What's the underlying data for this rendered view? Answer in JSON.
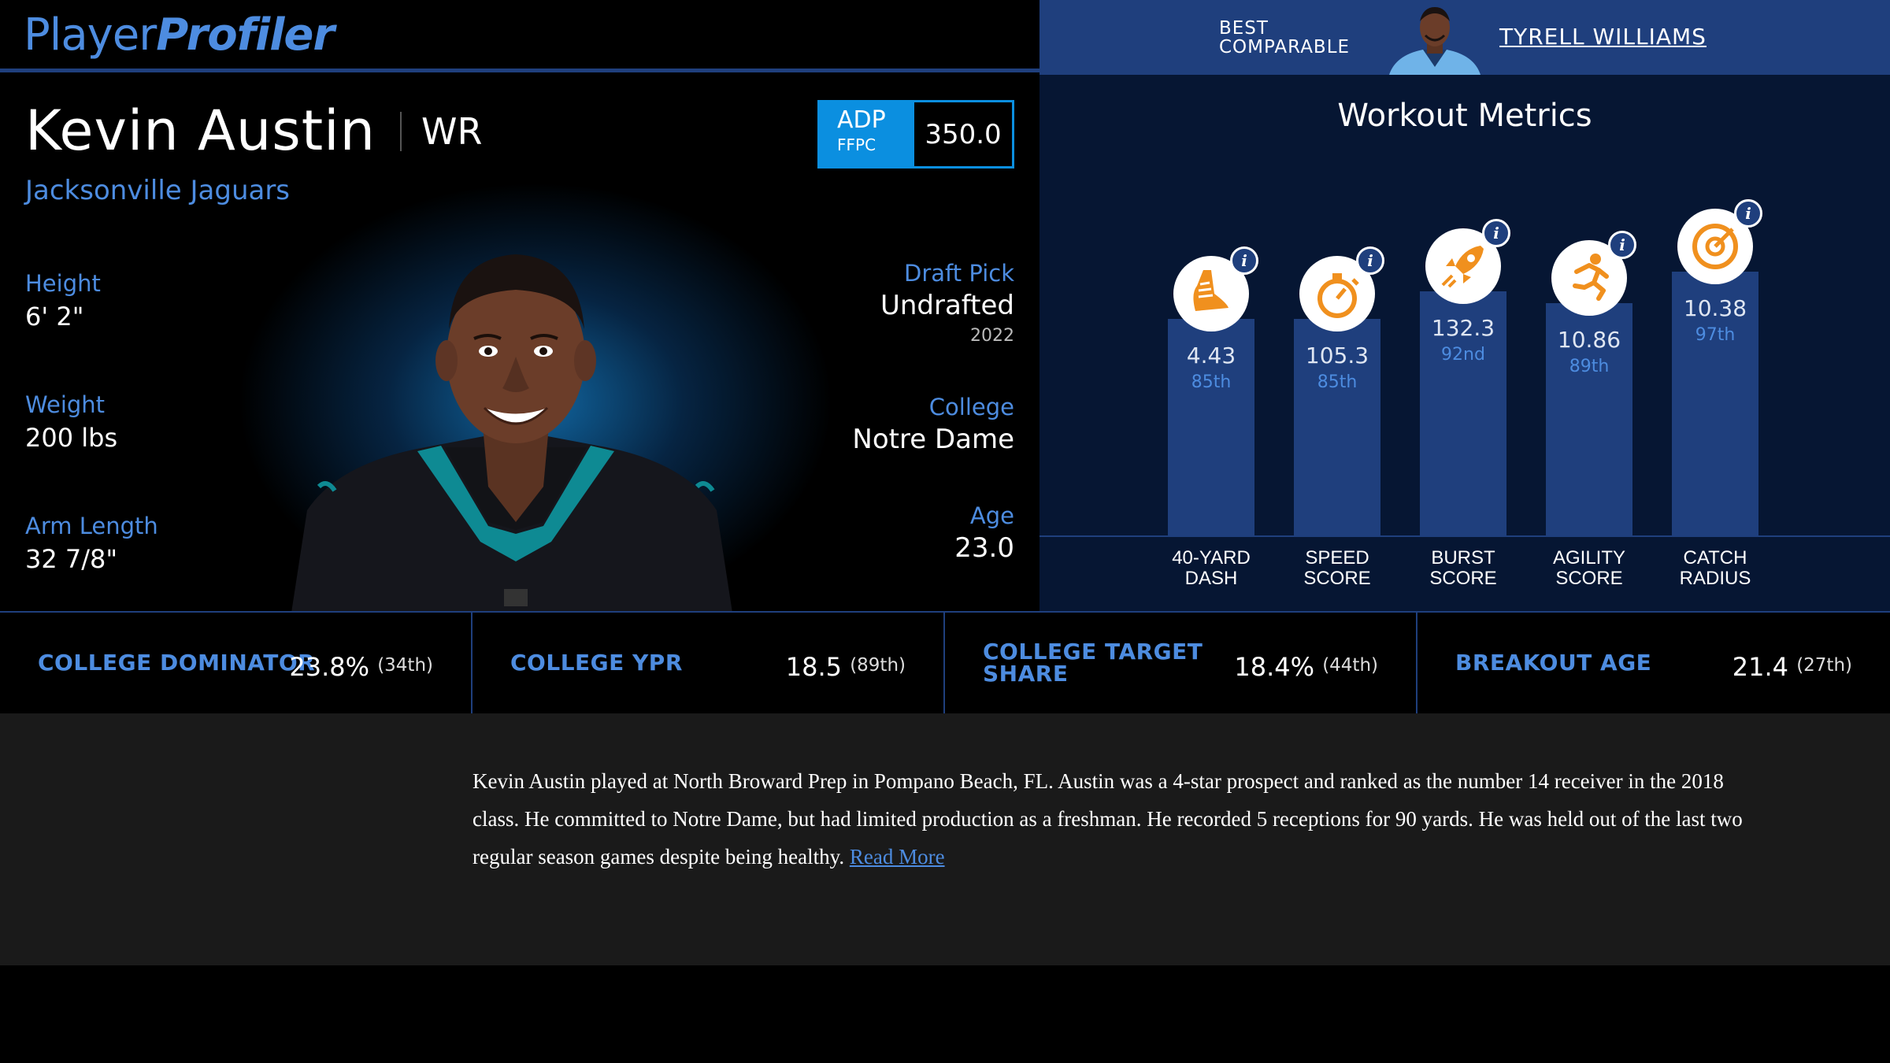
{
  "logo": {
    "part1": "Player",
    "part2": "Profiler"
  },
  "player": {
    "name": "Kevin Austin",
    "position": "WR",
    "team": "Jacksonville Jaguars",
    "adp": {
      "label": "ADP",
      "sub": "FFPC",
      "value": "350.0"
    },
    "height": {
      "label": "Height",
      "value": "6' 2\""
    },
    "weight": {
      "label": "Weight",
      "value": "200 lbs"
    },
    "arm_length": {
      "label": "Arm Length",
      "value": "32 7/8\""
    },
    "draft_pick": {
      "label": "Draft Pick",
      "value": "Undrafted",
      "year": "2022"
    },
    "college": {
      "label": "College",
      "value": "Notre Dame"
    },
    "age": {
      "label": "Age",
      "value": "23.0"
    }
  },
  "comparable": {
    "label_line1": "BEST",
    "label_line2": "COMPARABLE",
    "name": "TYRELL WILLIAMS"
  },
  "workout": {
    "title": "Workout Metrics",
    "metrics": [
      {
        "label1": "40-YARD",
        "label2": "DASH",
        "value": "4.43",
        "percentile": "85th",
        "pct_num": 85,
        "icon": "shoe-icon"
      },
      {
        "label1": "SPEED",
        "label2": "SCORE",
        "value": "105.3",
        "percentile": "85th",
        "pct_num": 85,
        "icon": "stopwatch-icon"
      },
      {
        "label1": "BURST",
        "label2": "SCORE",
        "value": "132.3",
        "percentile": "92nd",
        "pct_num": 92,
        "icon": "rocket-icon"
      },
      {
        "label1": "AGILITY",
        "label2": "SCORE",
        "value": "10.86",
        "percentile": "89th",
        "pct_num": 89,
        "icon": "running-icon"
      },
      {
        "label1": "CATCH",
        "label2": "RADIUS",
        "value": "10.38",
        "percentile": "97th",
        "pct_num": 97,
        "icon": "target-icon"
      }
    ]
  },
  "stats": [
    {
      "label": "COLLEGE DOMINATOR",
      "value": "23.8%",
      "pct": "(34th)"
    },
    {
      "label": "COLLEGE YPR",
      "value": "18.5",
      "pct": "(89th)"
    },
    {
      "label": "COLLEGE TARGET SHARE",
      "value": "18.4%",
      "pct": "(44th)"
    },
    {
      "label": "BREAKOUT AGE",
      "value": "21.4",
      "pct": "(27th)"
    }
  ],
  "bio": {
    "text": "Kevin Austin played at North Broward Prep in Pompano Beach, FL. Austin was a 4-star prospect and ranked as the number 14 receiver in the 2018 class. He committed to Notre Dame, but had limited production as a freshman. He recorded 5 receptions for 90 yards. He was held out of the last two regular season games despite being healthy.",
    "read_more": "Read More"
  },
  "colors": {
    "accent": "#4d8ce0",
    "bar": "#1f3f7d",
    "adp": "#0b8fe0",
    "icon_orange": "#f0901e"
  }
}
